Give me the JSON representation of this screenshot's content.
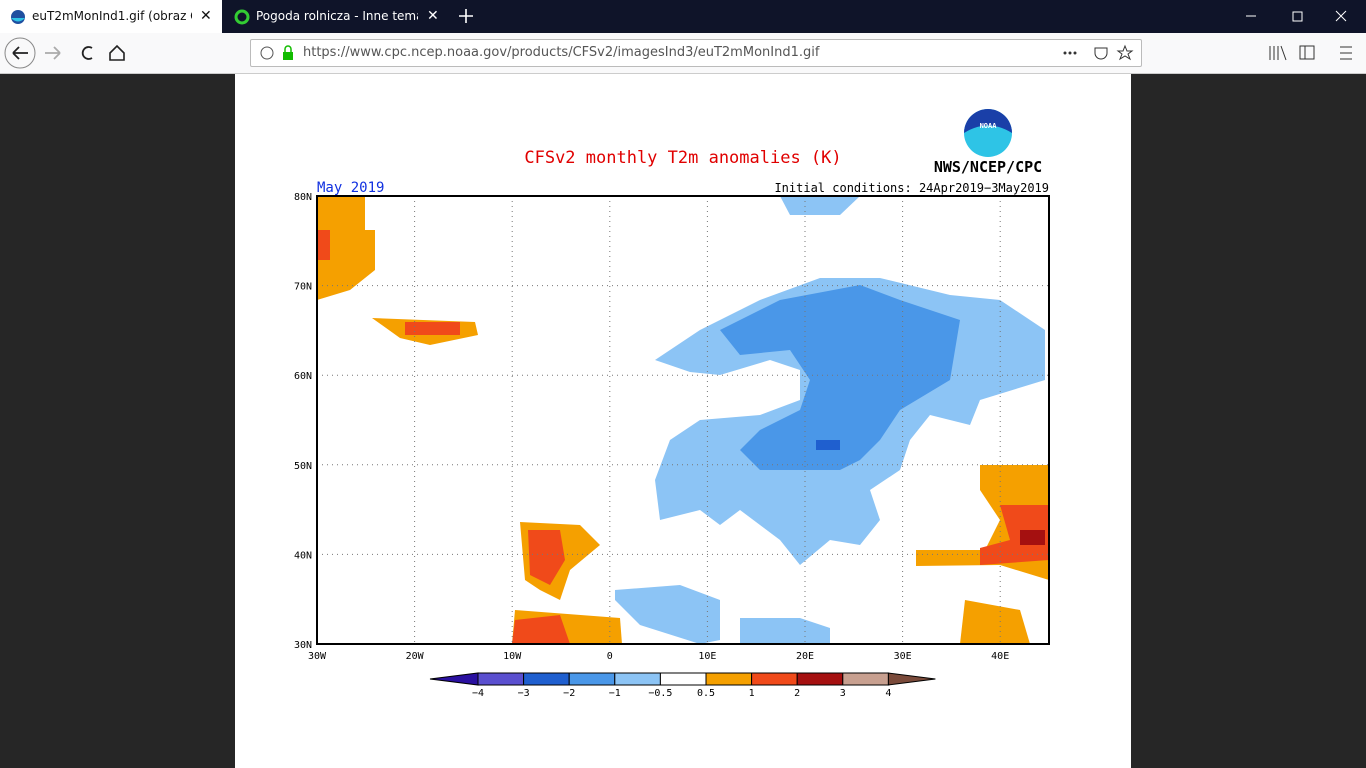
{
  "browser": {
    "tabs": [
      "euT2mMonInd1.gif (obraz GIF,",
      "Pogoda rolnicza - Inne tematy"
    ],
    "url": "https://www.cpc.ncep.noaa.gov/products/CFSv2/imagesInd3/euT2mMonInd1.gif"
  },
  "map": {
    "title": "CFSv2 monthly T2m anomalies (K)",
    "logo": "NOAA",
    "agency": "NWS/NCEP/CPC",
    "month": "May 2019",
    "initial": "Initial conditions: 24Apr2019−3May2019",
    "lat_labels": [
      "80N",
      "70N",
      "60N",
      "50N",
      "40N",
      "30N"
    ],
    "lon_labels": [
      "30W",
      "20W",
      "10W",
      "0",
      "10E",
      "20E",
      "30E",
      "40E"
    ],
    "colorbar_labels": [
      "−4",
      "−3",
      "−2",
      "−1",
      "−0.5",
      "0.5",
      "1",
      "2",
      "3",
      "4"
    ]
  }
}
